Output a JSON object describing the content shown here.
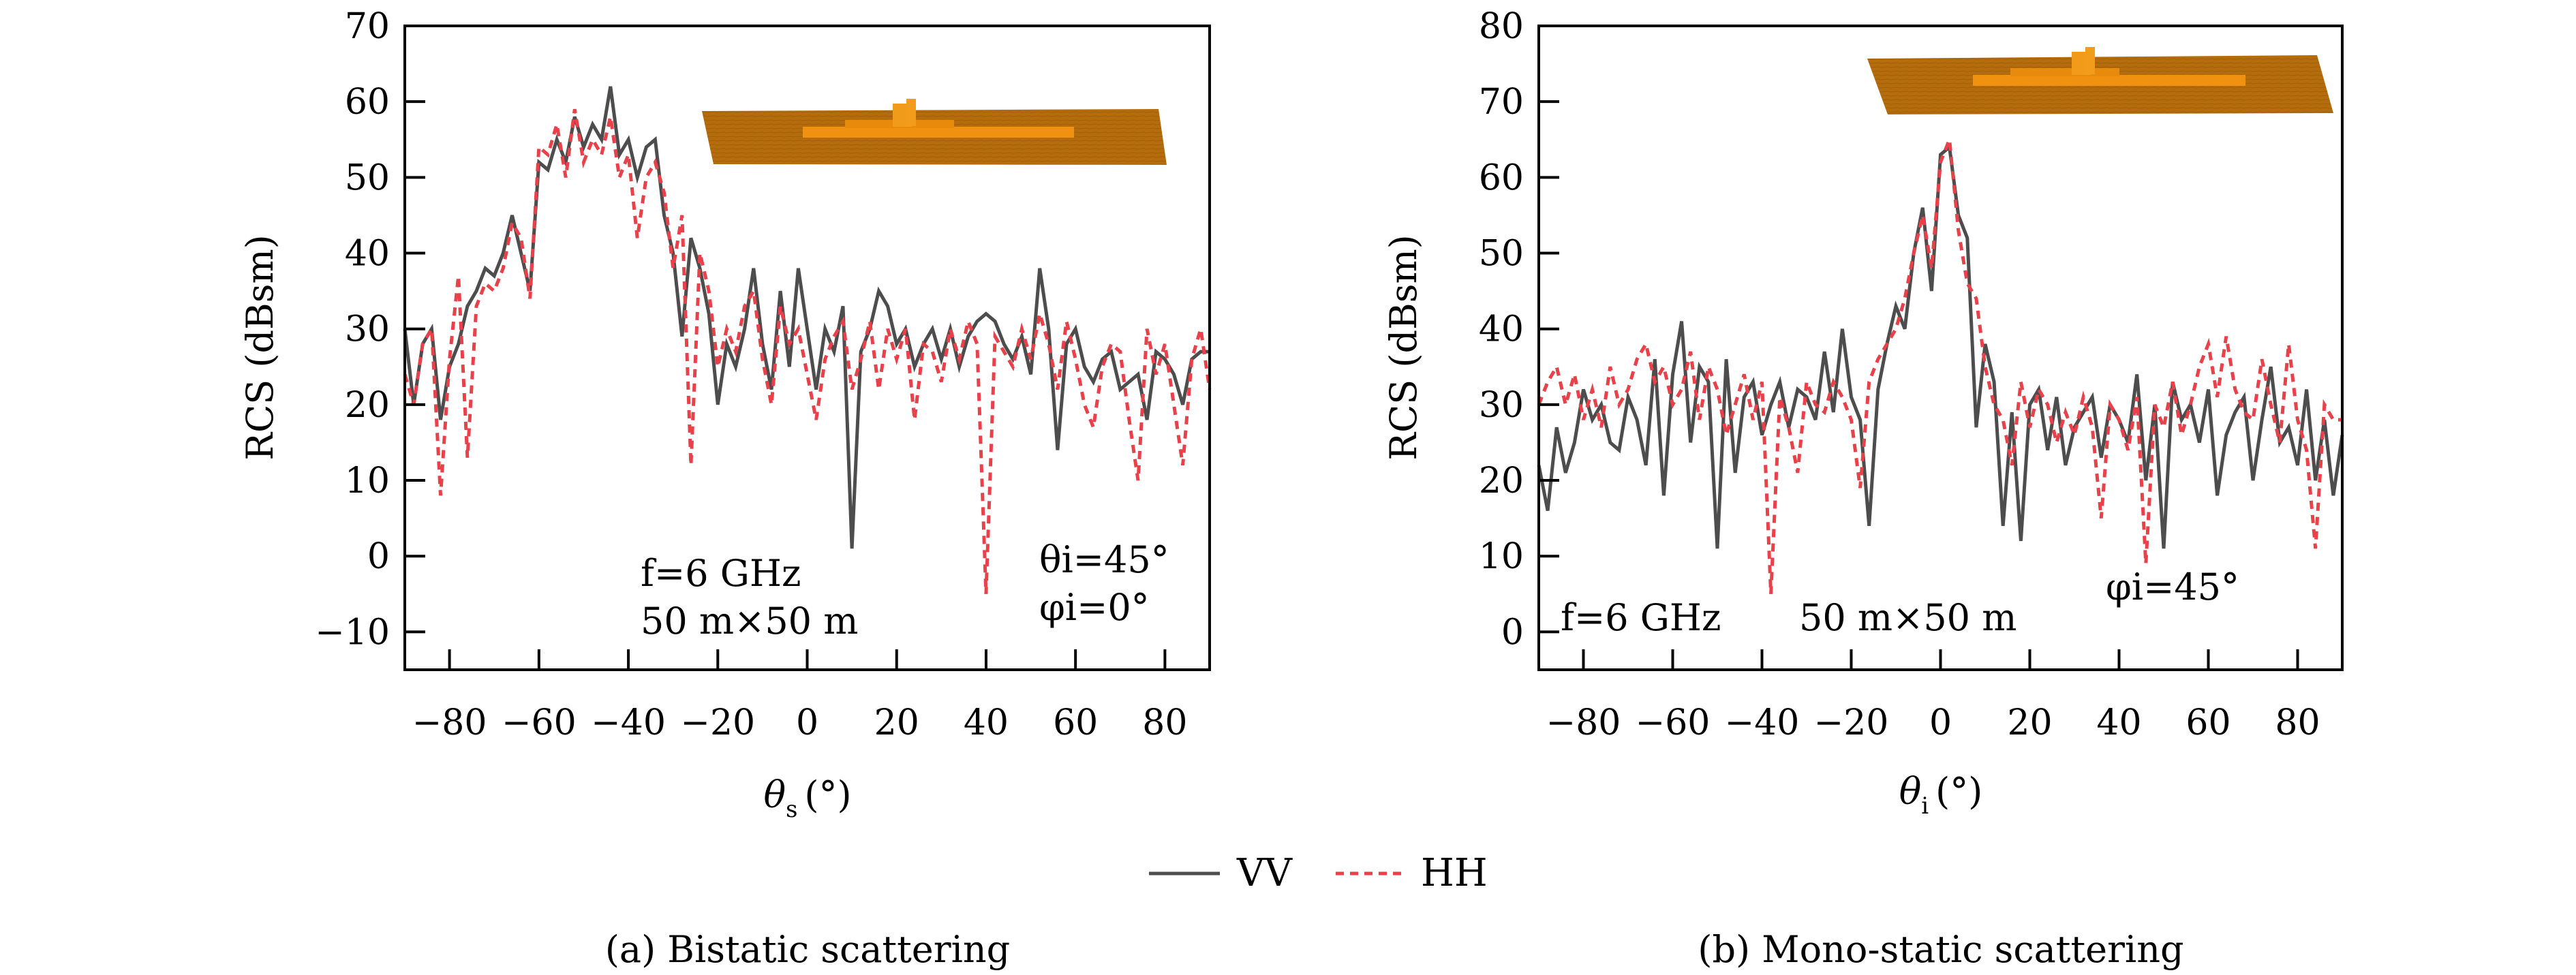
{
  "figure": {
    "legend": {
      "entries": [
        {
          "label": "VV",
          "color": "#4d4d4d",
          "style": "solid"
        },
        {
          "label": "HH",
          "color": "#e8414a",
          "style": "dashed"
        }
      ]
    },
    "inset_colors": {
      "sea": "#b46c0c",
      "ship": "#f0920f"
    }
  },
  "chart_data": [
    {
      "type": "line",
      "caption": "(a) Bistatic scattering",
      "title": "",
      "xlabel": "θs (°)",
      "xlabel_main": "θ",
      "xlabel_sub": "s",
      "xlabel_unit": "(°)",
      "ylabel": "RCS (dBsm)",
      "xlim": [
        -90,
        90
      ],
      "ylim": [
        -15,
        70
      ],
      "xticks": [
        -80,
        -60,
        -40,
        -20,
        0,
        20,
        40,
        60,
        80
      ],
      "xtick_labels": [
        "−80",
        "−60",
        "−40",
        "−20",
        "0",
        "20",
        "40",
        "60",
        "80"
      ],
      "yticks": [
        -10,
        0,
        10,
        20,
        30,
        40,
        50,
        60,
        70
      ],
      "ytick_labels": [
        "−10",
        "0",
        "10",
        "20",
        "30",
        "40",
        "50",
        "60",
        "70"
      ],
      "grid": false,
      "annotations": {
        "freq": "f=6 GHz",
        "size": "50 m×50 m",
        "theta_i": "θi=45°",
        "phi_i": "φi=0°"
      },
      "x": [
        -90,
        -88,
        -86,
        -84,
        -82,
        -80,
        -78,
        -76,
        -74,
        -72,
        -70,
        -68,
        -66,
        -64,
        -62,
        -60,
        -58,
        -56,
        -54,
        -52,
        -50,
        -48,
        -46,
        -44,
        -42,
        -40,
        -38,
        -36,
        -34,
        -32,
        -30,
        -28,
        -26,
        -24,
        -22,
        -20,
        -18,
        -16,
        -14,
        -12,
        -10,
        -8,
        -6,
        -4,
        -2,
        0,
        2,
        4,
        6,
        8,
        10,
        12,
        14,
        16,
        18,
        20,
        22,
        24,
        26,
        28,
        30,
        32,
        34,
        36,
        38,
        40,
        42,
        44,
        46,
        48,
        50,
        52,
        54,
        56,
        58,
        60,
        62,
        64,
        66,
        68,
        70,
        72,
        74,
        76,
        78,
        80,
        82,
        84,
        86,
        88,
        90
      ],
      "series": [
        {
          "name": "VV",
          "values": [
            30,
            20,
            28,
            30,
            18,
            25,
            28,
            33,
            35,
            38,
            37,
            40,
            45,
            40,
            35,
            52,
            51,
            55,
            52,
            58,
            54,
            57,
            55,
            62,
            53,
            55,
            50,
            54,
            55,
            45,
            40,
            29,
            42,
            38,
            32,
            20,
            28,
            25,
            30,
            38,
            28,
            22,
            35,
            25,
            38,
            30,
            22,
            30,
            27,
            33,
            1,
            27,
            30,
            35,
            33,
            28,
            30,
            25,
            28,
            30,
            26,
            30,
            25,
            29,
            31,
            32,
            31,
            28,
            26,
            29,
            24,
            38,
            30,
            14,
            28,
            30,
            25,
            23,
            26,
            27,
            22,
            23,
            24,
            18,
            27,
            26,
            24,
            20,
            26,
            27,
            27
          ]
        },
        {
          "name": "HH",
          "values": [
            24,
            20,
            28,
            30,
            8,
            26,
            37,
            13,
            33,
            36,
            35,
            38,
            44,
            42,
            34,
            54,
            53,
            57,
            50,
            59,
            52,
            55,
            53,
            58,
            50,
            53,
            42,
            50,
            52,
            48,
            38,
            45,
            12,
            40,
            35,
            25,
            30,
            27,
            33,
            35,
            26,
            20,
            33,
            28,
            30,
            24,
            18,
            26,
            29,
            31,
            22,
            26,
            31,
            22,
            30,
            26,
            30,
            18,
            28,
            27,
            23,
            30,
            26,
            31,
            28,
            -5,
            29,
            27,
            25,
            30,
            26,
            32,
            28,
            22,
            31,
            26,
            20,
            17,
            25,
            28,
            27,
            18,
            10,
            30,
            24,
            28,
            20,
            12,
            26,
            30,
            22
          ]
        }
      ]
    },
    {
      "type": "line",
      "caption": "(b) Mono-static scattering",
      "title": "",
      "xlabel": "θi (°)",
      "xlabel_main": "θ",
      "xlabel_sub": "i",
      "xlabel_unit": "(°)",
      "ylabel": "RCS (dBsm)",
      "xlim": [
        -90,
        90
      ],
      "ylim": [
        -5,
        80
      ],
      "xticks": [
        -80,
        -60,
        -40,
        -20,
        0,
        20,
        40,
        60,
        80
      ],
      "xtick_labels": [
        "−80",
        "−60",
        "−40",
        "−20",
        "0",
        "20",
        "40",
        "60",
        "80"
      ],
      "yticks": [
        0,
        10,
        20,
        30,
        40,
        50,
        60,
        70,
        80
      ],
      "ytick_labels": [
        "0",
        "10",
        "20",
        "30",
        "40",
        "50",
        "60",
        "70",
        "80"
      ],
      "grid": false,
      "annotations": {
        "freq": "f=6 GHz",
        "size": "50 m×50 m",
        "phi_i": "φi=45°"
      },
      "x": [
        -90,
        -88,
        -86,
        -84,
        -82,
        -80,
        -78,
        -76,
        -74,
        -72,
        -70,
        -68,
        -66,
        -64,
        -62,
        -60,
        -58,
        -56,
        -54,
        -52,
        -50,
        -48,
        -46,
        -44,
        -42,
        -40,
        -38,
        -36,
        -34,
        -32,
        -30,
        -28,
        -26,
        -24,
        -22,
        -20,
        -18,
        -16,
        -14,
        -12,
        -10,
        -8,
        -6,
        -4,
        -2,
        0,
        2,
        4,
        6,
        8,
        10,
        12,
        14,
        16,
        18,
        20,
        22,
        24,
        26,
        28,
        30,
        32,
        34,
        36,
        38,
        40,
        42,
        44,
        46,
        48,
        50,
        52,
        54,
        56,
        58,
        60,
        62,
        64,
        66,
        68,
        70,
        72,
        74,
        76,
        78,
        80,
        82,
        84,
        86,
        88,
        90
      ],
      "series": [
        {
          "name": "VV",
          "values": [
            22,
            16,
            27,
            21,
            25,
            32,
            28,
            30,
            25,
            24,
            31,
            28,
            22,
            36,
            18,
            34,
            41,
            25,
            35,
            33,
            11,
            36,
            21,
            31,
            33,
            26,
            30,
            33,
            27,
            32,
            31,
            28,
            37,
            29,
            40,
            31,
            28,
            14,
            32,
            38,
            43,
            40,
            50,
            56,
            45,
            63,
            64,
            55,
            52,
            27,
            38,
            33,
            14,
            29,
            12,
            30,
            32,
            24,
            31,
            22,
            27,
            29,
            31,
            23,
            30,
            28,
            25,
            34,
            20,
            30,
            11,
            33,
            28,
            30,
            25,
            32,
            18,
            26,
            29,
            31,
            20,
            28,
            35,
            25,
            27,
            22,
            32,
            20,
            28,
            18,
            26
          ]
        },
        {
          "name": "HH",
          "values": [
            30,
            33,
            35,
            30,
            34,
            28,
            32,
            27,
            35,
            30,
            32,
            36,
            38,
            33,
            35,
            30,
            32,
            37,
            28,
            35,
            32,
            26,
            30,
            34,
            28,
            33,
            5,
            31,
            27,
            21,
            33,
            30,
            29,
            33,
            31,
            28,
            19,
            33,
            36,
            38,
            40,
            44,
            50,
            55,
            48,
            62,
            65,
            53,
            46,
            44,
            35,
            30,
            28,
            22,
            33,
            27,
            32,
            30,
            25,
            29,
            26,
            31,
            27,
            15,
            30,
            28,
            24,
            31,
            9,
            30,
            27,
            33,
            26,
            30,
            35,
            38,
            31,
            39,
            32,
            29,
            28,
            36,
            30,
            25,
            38,
            28,
            24,
            11,
            30,
            28,
            28
          ]
        }
      ]
    }
  ]
}
